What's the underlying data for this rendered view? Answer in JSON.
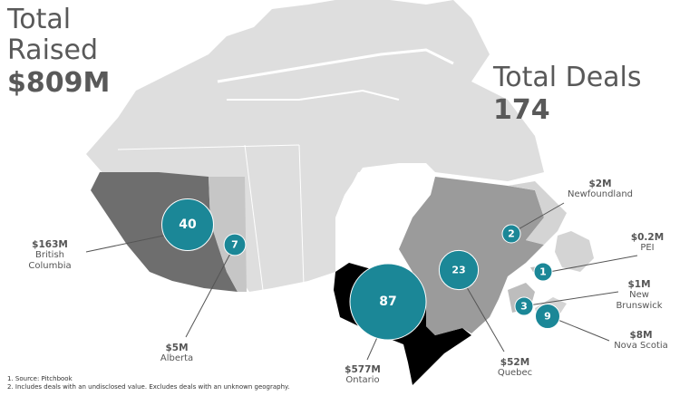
{
  "totals": {
    "raised_label_line1": "Total",
    "raised_label_line2": "Raised",
    "raised_value": "$809M",
    "deals_label": "Total Deals",
    "deals_value": "174"
  },
  "colors": {
    "bubble": "#1b8797",
    "british_columbia": "#6e6e6e",
    "alberta": "#c6c6c6",
    "prairies_territories": "#dedede",
    "ontario": "#000000",
    "quebec": "#9b9b9b",
    "atlantic": "#d4d4d4"
  },
  "regions": [
    {
      "name": "British Columbia",
      "amount": "$163M",
      "deals": 40
    },
    {
      "name": "Alberta",
      "amount": "$5M",
      "deals": 7
    },
    {
      "name": "Ontario",
      "amount": "$577M",
      "deals": 87
    },
    {
      "name": "Quebec",
      "amount": "$52M",
      "deals": 23
    },
    {
      "name": "Newfoundland",
      "amount": "$2M",
      "deals": 2
    },
    {
      "name": "PEI",
      "amount": "$0.2M",
      "deals": 1
    },
    {
      "name": "New Brunswick",
      "amount": "$1M",
      "deals": 3
    },
    {
      "name": "Nova Scotia",
      "amount": "$8M",
      "deals": 9
    }
  ],
  "footnotes": [
    "1.   Source: Pitchbook",
    "2.   Includes deals with an undisclosed value. Excludes deals with an unknown geography."
  ]
}
